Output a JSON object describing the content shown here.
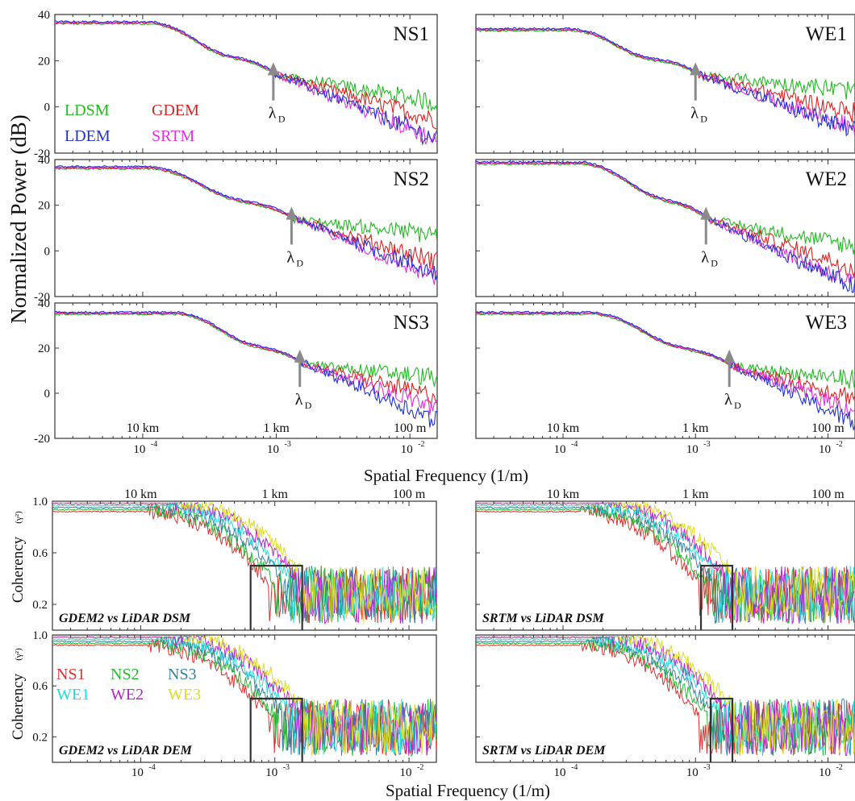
{
  "chart_data": {
    "type": "line",
    "title": "",
    "colors": {
      "LDSM": "#22bb22",
      "GDEM": "#dd2222",
      "LDEM": "#2233cc",
      "SRTM": "#dd33dd",
      "NS1": "#e03030",
      "NS2": "#22bb33",
      "NS3": "#3b7fa0",
      "WE1": "#22dddd",
      "WE2": "#bb22cc",
      "WE3": "#dddd22",
      "arrow": "#8a8a8a",
      "box": "#333333"
    },
    "spectra": {
      "ylabel": "Normalized Power (dB)",
      "xlabel": "Spatial Frequency (1/m)",
      "x_scale": "log",
      "xlim": [
        2.2e-05,
        0.016
      ],
      "ylim": [
        -20,
        40
      ],
      "y_ticks": [
        {
          "v": 40,
          "label": "40"
        },
        {
          "v": 20,
          "label": "20"
        },
        {
          "v": 0,
          "label": "0"
        },
        {
          "v": -20,
          "label": "-20"
        }
      ],
      "x_ticks": [
        {
          "v": 0.0001,
          "label": "10",
          "exp": "-4"
        },
        {
          "v": 0.001,
          "label": "10",
          "exp": "-3"
        },
        {
          "v": 0.01,
          "label": "10",
          "exp": "-2"
        }
      ],
      "distance_labels": [
        {
          "x": 0.0001,
          "label": "10 km"
        },
        {
          "x": 0.001,
          "label": "1 km"
        },
        {
          "x": 0.01,
          "label": "100 m"
        }
      ],
      "lambda_label": "λ",
      "lambda_sub": "D",
      "legend": [
        {
          "name": "LDSM",
          "color_key": "LDSM"
        },
        {
          "name": "GDEM",
          "color_key": "GDEM"
        },
        {
          "name": "LDEM",
          "color_key": "LDEM"
        },
        {
          "name": "SRTM",
          "color_key": "SRTM"
        }
      ],
      "panels": [
        {
          "name": "NS1",
          "plateau": 36,
          "knee": 0.00012,
          "mid": 0.00095,
          "mid_val": 14,
          "lambda_x": 0.00095,
          "ends": {
            "LDSM": 2,
            "GDEM": -6,
            "LDEM": -15,
            "SRTM": -15
          }
        },
        {
          "name": "NS2",
          "plateau": 36,
          "knee": 0.00012,
          "mid": 0.0013,
          "mid_val": 14,
          "lambda_x": 0.0013,
          "ends": {
            "LDSM": 7,
            "GDEM": -5,
            "LDEM": -11,
            "SRTM": -13
          }
        },
        {
          "name": "NS3",
          "plateau": 35,
          "knee": 0.00019,
          "mid": 0.0015,
          "mid_val": 13,
          "lambda_x": 0.0015,
          "ends": {
            "LDSM": 7,
            "GDEM": -2,
            "LDEM": -13,
            "SRTM": -7
          }
        },
        {
          "name": "WE1",
          "plateau": 33,
          "knee": 0.00012,
          "mid": 0.001,
          "mid_val": 14,
          "lambda_x": 0.001,
          "ends": {
            "LDSM": 7,
            "GDEM": -3,
            "LDEM": -12,
            "SRTM": -10
          }
        },
        {
          "name": "WE2",
          "plateau": 38,
          "knee": 0.00015,
          "mid": 0.0012,
          "mid_val": 14,
          "lambda_x": 0.0012,
          "ends": {
            "LDSM": 2,
            "GDEM": -8,
            "LDEM": -17,
            "SRTM": -15
          }
        },
        {
          "name": "WE3",
          "plateau": 35,
          "knee": 0.00018,
          "mid": 0.0018,
          "mid_val": 12,
          "lambda_x": 0.0018,
          "ends": {
            "LDSM": 6,
            "GDEM": -2,
            "LDEM": -14,
            "SRTM": -8
          }
        }
      ]
    },
    "coherency": {
      "ylabel": "Coherency",
      "ylabel_unit": "(γ²)",
      "xlabel": "Spatial Frequency (1/m)",
      "x_scale": "log",
      "xlim": [
        2.2e-05,
        0.016
      ],
      "ylim": [
        0,
        1
      ],
      "y_ticks": [
        {
          "v": 1.0,
          "label": "1.0"
        },
        {
          "v": 0.6,
          "label": "0.6"
        },
        {
          "v": 0.2,
          "label": "0.2"
        }
      ],
      "x_ticks": [
        {
          "v": 0.0001,
          "label": "10",
          "exp": "-4"
        },
        {
          "v": 0.001,
          "label": "10",
          "exp": "-3"
        },
        {
          "v": 0.01,
          "label": "10",
          "exp": "-2"
        }
      ],
      "distance_labels": [
        {
          "x": 0.0001,
          "label": "10 km"
        },
        {
          "x": 0.001,
          "label": "1 km"
        },
        {
          "x": 0.01,
          "label": "100 m"
        }
      ],
      "legend": [
        {
          "name": "NS1",
          "color_key": "NS1"
        },
        {
          "name": "NS2",
          "color_key": "NS2"
        },
        {
          "name": "NS3",
          "color_key": "NS3"
        },
        {
          "name": "WE1",
          "color_key": "WE1"
        },
        {
          "name": "WE2",
          "color_key": "WE2"
        },
        {
          "name": "WE3",
          "color_key": "WE3"
        }
      ],
      "panels": [
        {
          "name": "GDEM2 vs LiDAR DSM",
          "box": {
            "x0": 0.00066,
            "x1": 0.0016,
            "y": 0.5
          },
          "cut": 0.0016
        },
        {
          "name": "SRTM vs LiDAR DSM",
          "box": {
            "x0": 0.0011,
            "x1": 0.0019,
            "y": 0.5
          },
          "cut": 0.0019
        },
        {
          "name": "GDEM2 vs LiDAR DEM",
          "box": {
            "x0": 0.00066,
            "x1": 0.0016,
            "y": 0.5
          },
          "cut": 0.0016
        },
        {
          "name": "SRTM vs LiDAR DEM",
          "box": {
            "x0": 0.0013,
            "x1": 0.0019,
            "y": 0.5
          },
          "cut": 0.0019
        }
      ]
    }
  }
}
